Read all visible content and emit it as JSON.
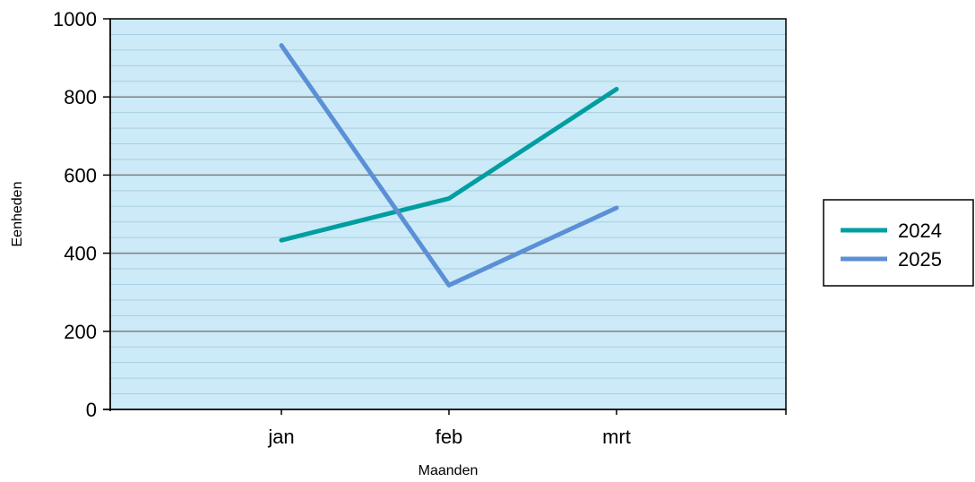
{
  "chart_data": {
    "type": "line",
    "categories": [
      "jan",
      "feb",
      "mrt"
    ],
    "series": [
      {
        "name": "2024",
        "values": [
          433,
          540,
          820
        ],
        "color": "#009ea0"
      },
      {
        "name": "2025",
        "values": [
          932,
          318,
          516
        ],
        "color": "#5b8fd6"
      }
    ],
    "xlabel": "Maanden",
    "ylabel": "Eenheden",
    "ylim": [
      0,
      1000
    ],
    "y_major_ticks": [
      0,
      200,
      400,
      600,
      800,
      1000
    ],
    "y_minor_step": 40,
    "grid": true,
    "legend_position": "right",
    "plot_background": "#cceaf7",
    "major_grid_color": "#808080",
    "minor_grid_color": "#a8cfe2"
  }
}
